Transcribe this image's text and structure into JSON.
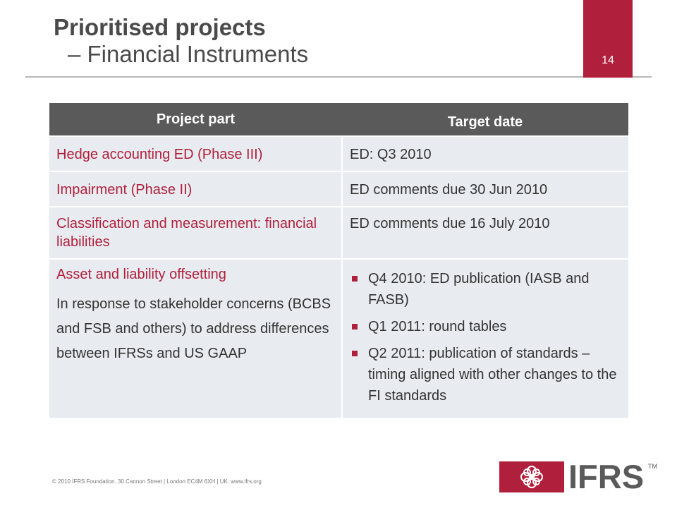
{
  "header": {
    "title_line1": "Prioritised projects",
    "title_line2": "– Financial Instruments",
    "page_number": "14"
  },
  "table": {
    "headers": [
      "Project part",
      "Target date"
    ],
    "rows": [
      {
        "part": "Hedge accounting ED (Phase III)",
        "target": "ED: Q3 2010"
      },
      {
        "part": "Impairment (Phase II)",
        "target": "ED comments due 30 Jun 2010"
      },
      {
        "part": "Classification and measurement: financial liabilities",
        "target": "ED comments due 16 July 2010"
      },
      {
        "part": "Asset and liability offsetting",
        "part_description": "In response to stakeholder concerns (BCBS and FSB and others) to address differences between IFRSs and US GAAP",
        "target_items": [
          "Q4 2010: ED publication (IASB and FASB)",
          "Q1 2011: round tables",
          "Q2 2011: publication of standards – timing aligned with other changes to the FI standards"
        ]
      }
    ]
  },
  "footer": {
    "text": "© 2010 IFRS Foundation. 30 Cannon Street | London EC4M 6XH | UK. www.ifrs.org"
  },
  "logo": {
    "text": "IFRS",
    "trademark": "TM",
    "icon": "ifrs-flower-icon",
    "brand_color": "#b01f3b"
  },
  "colors": {
    "accent": "#b01f3b",
    "header_bg": "#5a5a5a",
    "row_bg": "#e8ecf1"
  }
}
